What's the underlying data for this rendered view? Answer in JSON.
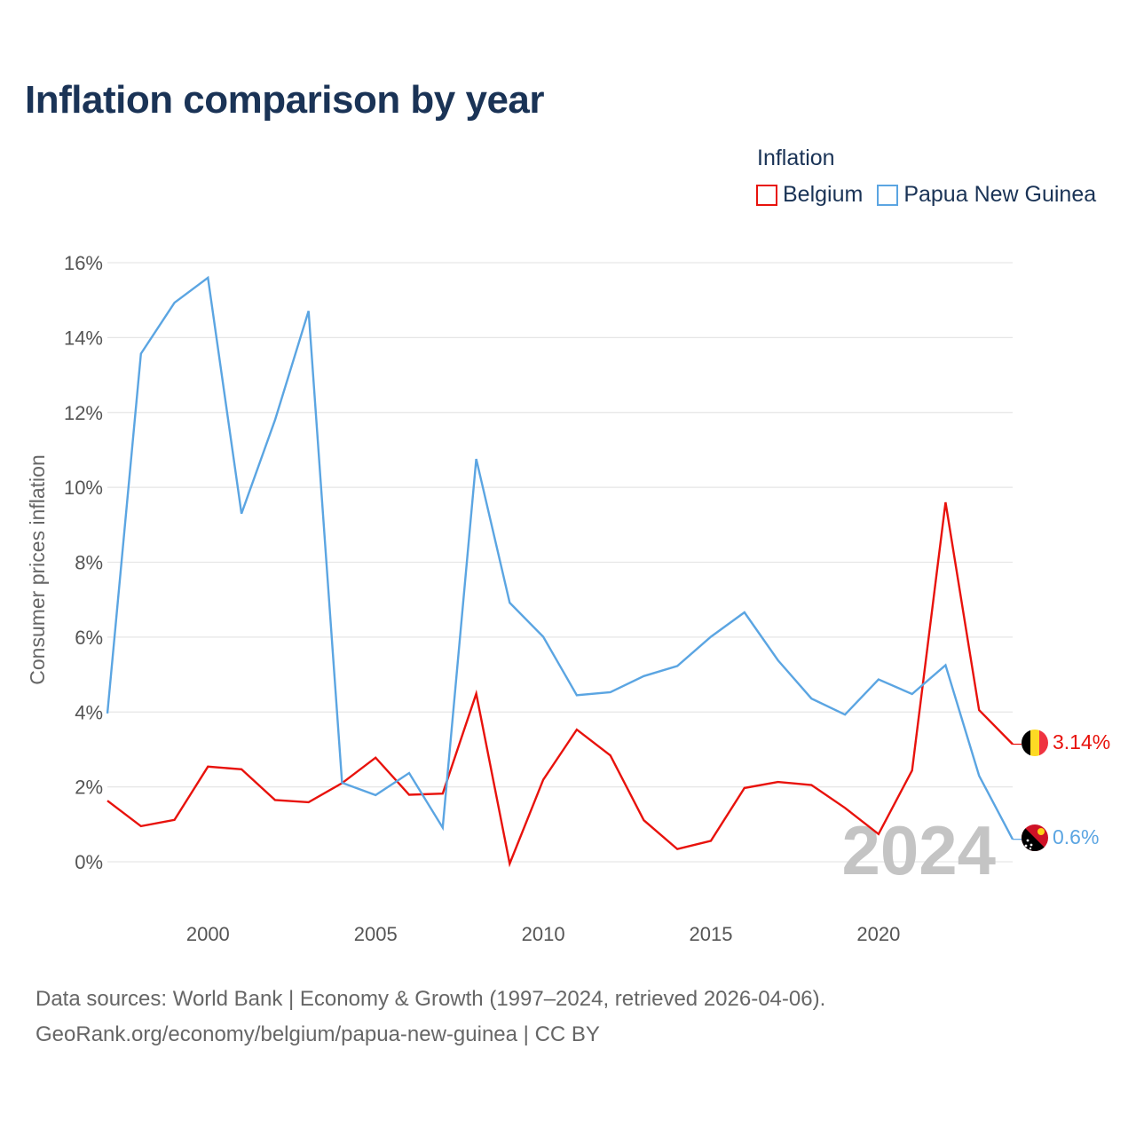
{
  "title": "Inflation comparison by year",
  "legend": {
    "title": "Inflation",
    "items": [
      {
        "label": "Belgium",
        "color": "#e8120c"
      },
      {
        "label": "Papua New Guinea",
        "color": "#5ba5e2"
      }
    ]
  },
  "year_watermark": "2024",
  "end_labels": {
    "belgium": "3.14%",
    "png": "0.6%"
  },
  "footer": {
    "line1": "Data sources: World Bank | Economy & Growth (1997–2024, retrieved 2026-04-06).",
    "line2": "GeoRank.org/economy/belgium/papua-new-guinea | CC BY"
  },
  "chart_data": {
    "type": "line",
    "title": "Inflation comparison by year",
    "xlabel": "",
    "ylabel": "Consumer prices inflation",
    "xlim": [
      1997,
      2024
    ],
    "ylim": [
      0,
      16
    ],
    "y_ticks": [
      0,
      2,
      4,
      6,
      8,
      10,
      12,
      14,
      16
    ],
    "y_tick_labels": [
      "0%",
      "2%",
      "4%",
      "6%",
      "8%",
      "10%",
      "12%",
      "14%",
      "16%"
    ],
    "x_ticks": [
      2000,
      2005,
      2010,
      2015,
      2020
    ],
    "x_tick_labels": [
      "2000",
      "2005",
      "2010",
      "2015",
      "2020"
    ],
    "x": [
      1997,
      1998,
      1999,
      2000,
      2001,
      2002,
      2003,
      2004,
      2005,
      2006,
      2007,
      2008,
      2009,
      2010,
      2011,
      2012,
      2013,
      2014,
      2015,
      2016,
      2017,
      2018,
      2019,
      2020,
      2021,
      2022,
      2023,
      2024
    ],
    "series": [
      {
        "name": "Belgium",
        "color": "#e8120c",
        "values": [
          1.63,
          0.95,
          1.12,
          2.54,
          2.47,
          1.65,
          1.59,
          2.1,
          2.78,
          1.79,
          1.82,
          4.49,
          -0.05,
          2.19,
          3.53,
          2.84,
          1.11,
          0.34,
          0.56,
          1.97,
          2.13,
          2.05,
          1.44,
          0.74,
          2.44,
          9.6,
          4.05,
          3.14
        ]
      },
      {
        "name": "Papua New Guinea",
        "color": "#5ba5e2",
        "values": [
          3.96,
          13.57,
          14.93,
          15.6,
          9.3,
          11.8,
          14.71,
          2.11,
          1.78,
          2.37,
          0.91,
          10.76,
          6.92,
          6.01,
          4.45,
          4.53,
          4.96,
          5.23,
          6.01,
          6.66,
          5.38,
          4.36,
          3.93,
          4.87,
          4.48,
          5.25,
          2.3,
          0.6
        ]
      }
    ],
    "grid": true,
    "legend_position": "top-right"
  }
}
